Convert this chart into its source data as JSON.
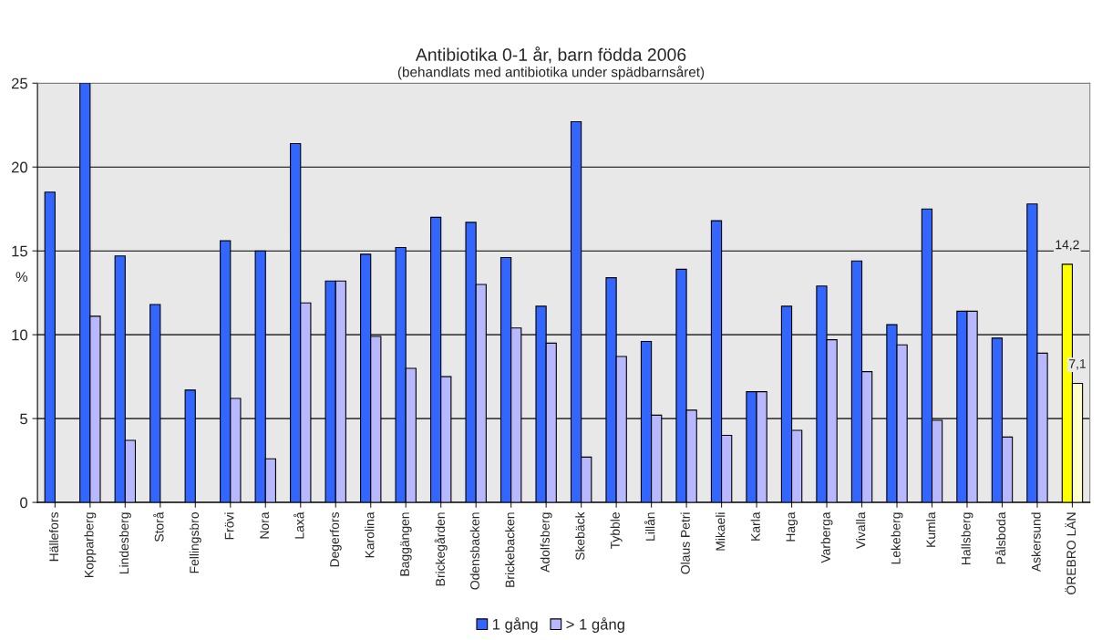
{
  "chart_data": {
    "type": "bar",
    "title": "Antibiotika 0-1 år, barn födda 2006",
    "subtitle": "(behandlats med antibiotika under spädbarnsåret)",
    "ylabel": "%",
    "categories": [
      "Hällefors",
      "Kopparberg",
      "Lindesberg",
      "Storå",
      "Fellingsbro",
      "Frövi",
      "Nora",
      "Laxå",
      "Degerfors",
      "Karolina",
      "Baggängen",
      "Brickegården",
      "Odensbacken",
      "Brickebacken",
      "Adolfsberg",
      "Skebäck",
      "Tybble",
      "Lillån",
      "Olaus Petri",
      "Mikaeli",
      "Karla",
      "Haga",
      "Varberga",
      "Vivalla",
      "Lekeberg",
      "Kumla",
      "Hallsberg",
      "Pålsboda",
      "Askersund",
      "ÖREBRO LÄN"
    ],
    "series": [
      {
        "name": "1 gång",
        "color": "#3366ff",
        "colors": [
          "#3366ff",
          "#3366ff",
          "#3366ff",
          "#3366ff",
          "#3366ff",
          "#3366ff",
          "#3366ff",
          "#3366ff",
          "#3366ff",
          "#3366ff",
          "#3366ff",
          "#3366ff",
          "#3366ff",
          "#3366ff",
          "#3366ff",
          "#3366ff",
          "#3366ff",
          "#3366ff",
          "#3366ff",
          "#3366ff",
          "#3366ff",
          "#3366ff",
          "#3366ff",
          "#3366ff",
          "#3366ff",
          "#3366ff",
          "#3366ff",
          "#3366ff",
          "#3366ff",
          "#ffff00"
        ],
        "values": [
          18.5,
          25.0,
          14.7,
          11.8,
          6.7,
          15.6,
          15.0,
          21.4,
          13.2,
          14.8,
          15.2,
          17.0,
          16.7,
          14.6,
          11.7,
          22.7,
          13.4,
          9.6,
          13.9,
          16.8,
          6.6,
          11.7,
          12.9,
          14.4,
          10.6,
          17.5,
          11.4,
          9.8,
          17.8,
          14.2
        ],
        "value_labels": [
          null,
          null,
          null,
          null,
          null,
          null,
          null,
          null,
          null,
          null,
          null,
          null,
          null,
          null,
          null,
          null,
          null,
          null,
          null,
          null,
          null,
          null,
          null,
          null,
          null,
          null,
          null,
          null,
          null,
          "14,2"
        ]
      },
      {
        "name": "> 1 gång",
        "color": "#b8b8ff",
        "colors": [
          "#b8b8ff",
          "#b8b8ff",
          "#b8b8ff",
          "#b8b8ff",
          "#b8b8ff",
          "#b8b8ff",
          "#b8b8ff",
          "#b8b8ff",
          "#b8b8ff",
          "#b8b8ff",
          "#b8b8ff",
          "#b8b8ff",
          "#b8b8ff",
          "#b8b8ff",
          "#b8b8ff",
          "#b8b8ff",
          "#b8b8ff",
          "#b8b8ff",
          "#b8b8ff",
          "#b8b8ff",
          "#b8b8ff",
          "#b8b8ff",
          "#b8b8ff",
          "#b8b8ff",
          "#b8b8ff",
          "#b8b8ff",
          "#b8b8ff",
          "#b8b8ff",
          "#b8b8ff",
          "#ffffcc"
        ],
        "values": [
          null,
          11.1,
          3.7,
          null,
          null,
          6.2,
          2.6,
          11.9,
          13.2,
          9.9,
          8.0,
          7.5,
          13.0,
          10.4,
          9.5,
          2.7,
          8.7,
          5.2,
          5.5,
          4.0,
          6.6,
          4.3,
          9.7,
          7.8,
          9.4,
          4.9,
          11.4,
          3.9,
          8.9,
          7.1
        ],
        "value_labels": [
          null,
          null,
          null,
          null,
          null,
          null,
          null,
          null,
          null,
          null,
          null,
          null,
          null,
          null,
          null,
          null,
          null,
          null,
          null,
          null,
          null,
          null,
          null,
          null,
          null,
          null,
          null,
          null,
          null,
          "7,1"
        ]
      }
    ],
    "ylim": [
      0,
      25
    ],
    "yticks": [
      0,
      5,
      10,
      15,
      20,
      25
    ],
    "grid": "y",
    "legend": "bottom"
  }
}
